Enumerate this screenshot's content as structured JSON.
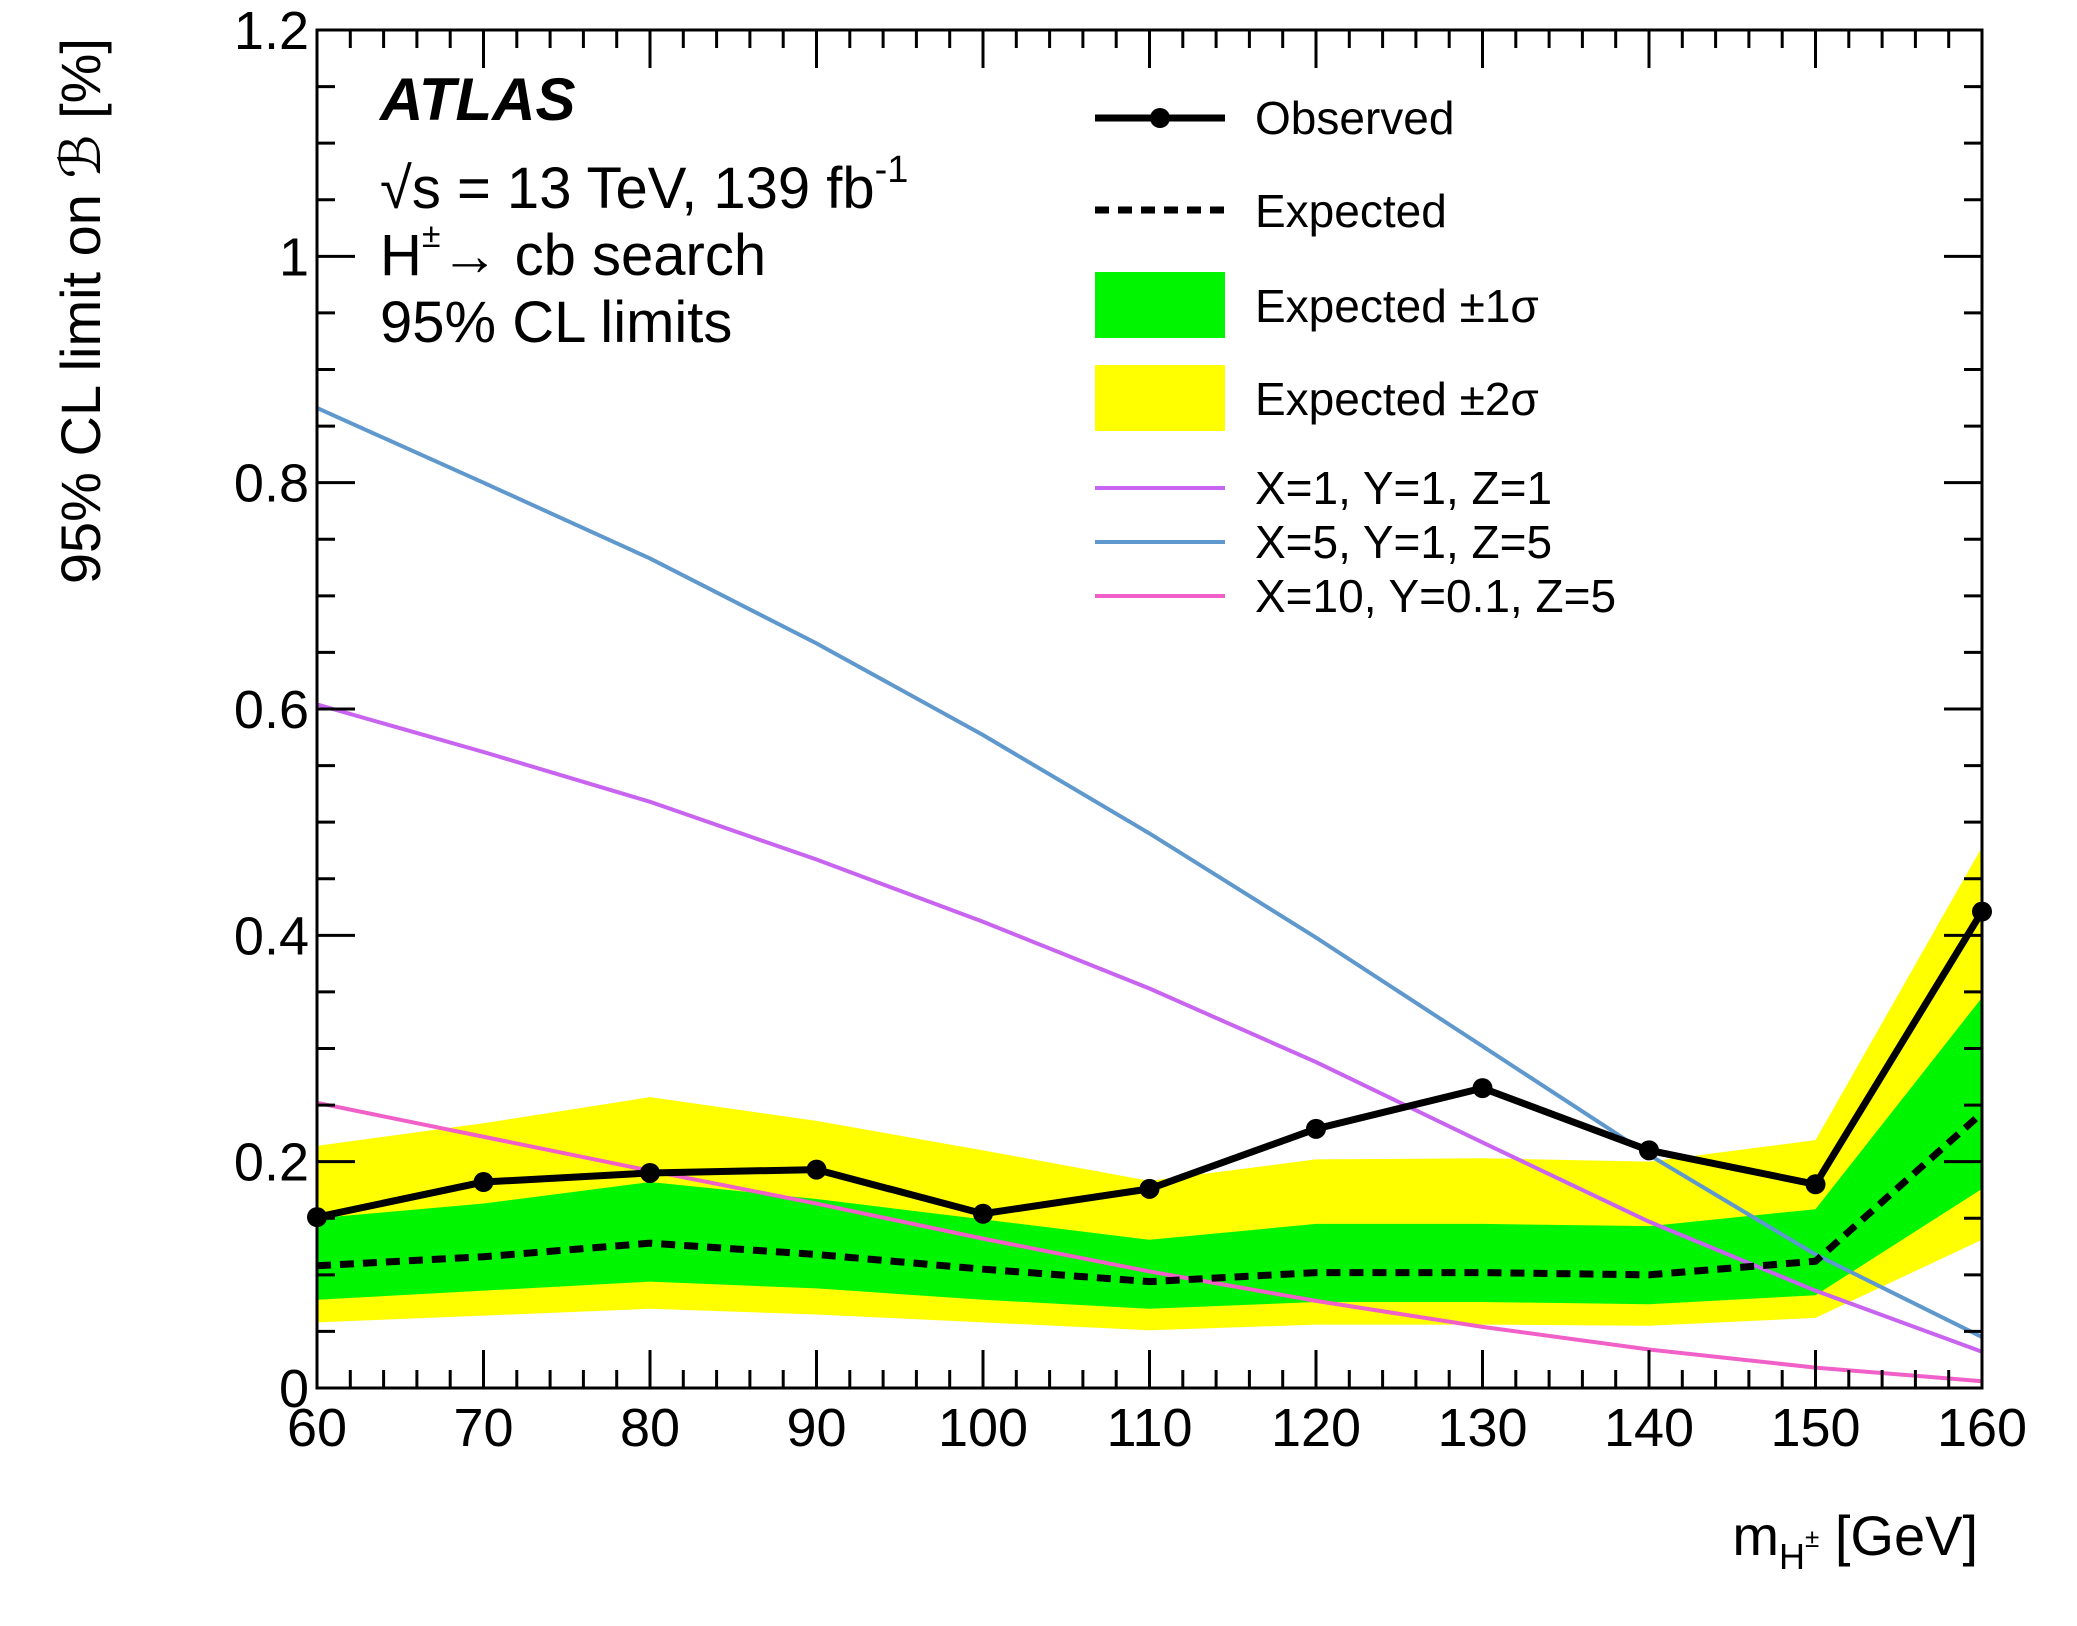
{
  "chart_data": {
    "type": "line",
    "title": "",
    "experiment": "ATLAS",
    "info_lines": {
      "energy": "√s = 13 TeV, 139 fb",
      "energy_exp": "-1",
      "channel_main": "H",
      "channel_sup": "±",
      "channel_rest": "→ cb search",
      "cl": "95% CL limits"
    },
    "xlabel": {
      "main": "m",
      "sub": "H",
      "subsup": "±",
      "unit": " [GeV]"
    },
    "ylabel": "95% CL limit on ℬ [%]",
    "xlim": [
      60,
      160
    ],
    "ylim": [
      0,
      1.2
    ],
    "x_ticks": [
      "60",
      "70",
      "80",
      "90",
      "100",
      "110",
      "120",
      "130",
      "140",
      "150",
      "160"
    ],
    "y_ticks": [
      {
        "value": 0,
        "label": "0"
      },
      {
        "value": 0.2,
        "label": "0.2"
      },
      {
        "value": 0.4,
        "label": "0.4"
      },
      {
        "value": 0.6,
        "label": "0.6"
      },
      {
        "value": 0.8,
        "label": "0.8"
      },
      {
        "value": 1.0,
        "label": "1"
      },
      {
        "value": 1.2,
        "label": "1.2"
      }
    ],
    "x": [
      60,
      70,
      80,
      90,
      100,
      110,
      120,
      130,
      140,
      150,
      160
    ],
    "observed": [
      0.151,
      0.182,
      0.19,
      0.193,
      0.154,
      0.176,
      0.229,
      0.265,
      0.21,
      0.18,
      0.421
    ],
    "expected": [
      0.108,
      0.116,
      0.128,
      0.118,
      0.105,
      0.094,
      0.102,
      0.102,
      0.1,
      0.112,
      0.243
    ],
    "band_1sigma": {
      "low": [
        0.078,
        0.086,
        0.094,
        0.088,
        0.078,
        0.07,
        0.076,
        0.076,
        0.074,
        0.082,
        0.176
      ],
      "high": [
        0.15,
        0.163,
        0.182,
        0.167,
        0.149,
        0.131,
        0.145,
        0.145,
        0.143,
        0.158,
        0.345
      ]
    },
    "band_2sigma": {
      "low": [
        0.058,
        0.064,
        0.07,
        0.065,
        0.058,
        0.051,
        0.056,
        0.056,
        0.055,
        0.062,
        0.131
      ],
      "high": [
        0.214,
        0.234,
        0.257,
        0.236,
        0.21,
        0.183,
        0.202,
        0.203,
        0.2,
        0.219,
        0.478
      ]
    },
    "model_curves": [
      {
        "name": "X=1, Y=1, Z=1",
        "color": "#c964f0",
        "values": [
          0.604,
          0.562,
          0.518,
          0.467,
          0.412,
          0.353,
          0.288,
          0.217,
          0.147,
          0.086,
          0.032
        ]
      },
      {
        "name": "X=5, Y=1, Z=5",
        "color": "#5e98cc",
        "values": [
          0.866,
          0.8,
          0.733,
          0.658,
          0.577,
          0.49,
          0.398,
          0.302,
          0.206,
          0.118,
          0.045
        ]
      },
      {
        "name": "X=10, Y=0.1, Z=5",
        "color": "#f060c8",
        "values": [
          0.252,
          0.222,
          0.192,
          0.163,
          0.132,
          0.103,
          0.077,
          0.054,
          0.034,
          0.018,
          0.006
        ]
      }
    ],
    "legend": {
      "position": "top-right",
      "entries": [
        {
          "key": "observed",
          "label": "Observed"
        },
        {
          "key": "expected",
          "label": "Expected"
        },
        {
          "key": "band_1sigma",
          "label": "Expected ±1σ"
        },
        {
          "key": "band_2sigma",
          "label": "Expected ±2σ"
        },
        {
          "key": "model_0",
          "label": "X=1, Y=1, Z=1"
        },
        {
          "key": "model_1",
          "label": "X=5, Y=1, Z=5"
        },
        {
          "key": "model_2",
          "label": "X=10, Y=0.1, Z=5"
        }
      ]
    },
    "colors": {
      "observed": "#000000",
      "expected": "#000000",
      "band_1sigma": "#00f500",
      "band_2sigma": "#ffff00"
    }
  }
}
